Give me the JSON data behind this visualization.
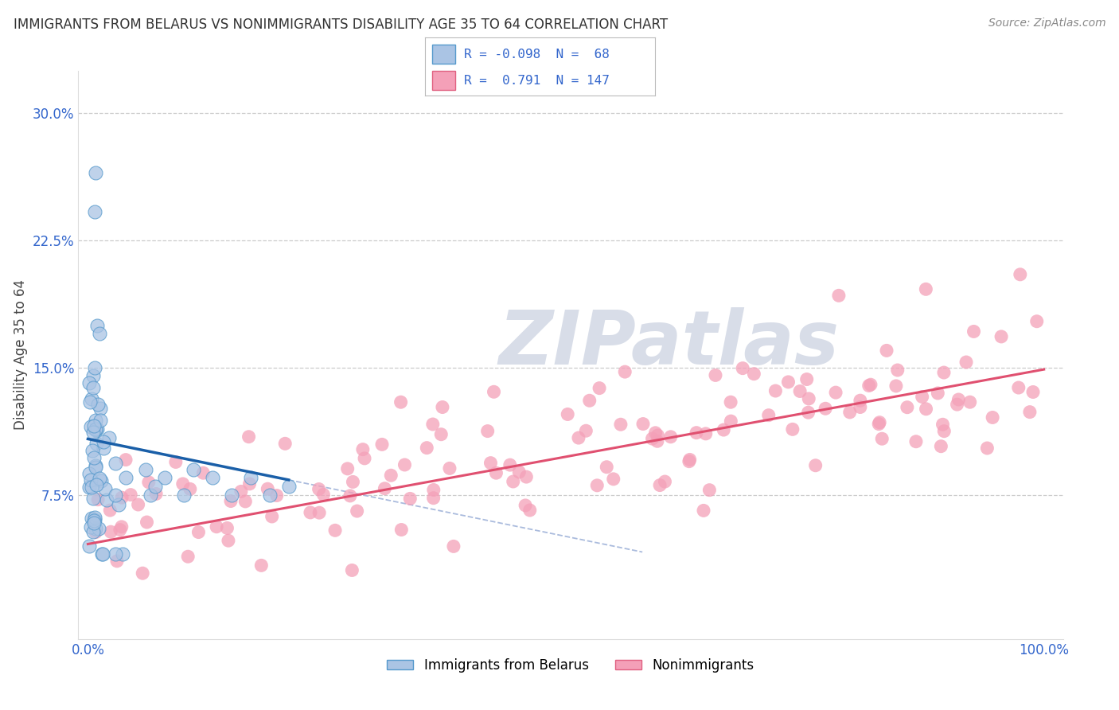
{
  "title": "IMMIGRANTS FROM BELARUS VS NONIMMIGRANTS DISABILITY AGE 35 TO 64 CORRELATION CHART",
  "source": "Source: ZipAtlas.com",
  "xlabel": "",
  "ylabel": "Disability Age 35 to 64",
  "xlim": [
    -0.01,
    1.02
  ],
  "ylim": [
    -0.01,
    0.325
  ],
  "xtick_positions": [
    0.0,
    1.0
  ],
  "xtick_labels": [
    "0.0%",
    "100.0%"
  ],
  "ytick_positions": [
    0.075,
    0.15,
    0.225,
    0.3
  ],
  "ytick_labels": [
    "7.5%",
    "15.0%",
    "22.5%",
    "30.0%"
  ],
  "blue_color": "#aac4e4",
  "blue_edge_color": "#5599cc",
  "pink_color": "#f4a0b8",
  "pink_edge_color": "#e06080",
  "blue_line_color": "#1a5fa8",
  "pink_line_color": "#e05070",
  "blue_dash_color": "#aaaacc",
  "watermark_text": "ZIPatlas",
  "watermark_color": "#d8dde8",
  "background_color": "#ffffff",
  "grid_color": "#cccccc",
  "title_fontsize": 12,
  "source_fontsize": 10,
  "axis_label_fontsize": 12,
  "tick_fontsize": 12,
  "tick_color": "#3366cc",
  "legend_label1": "R = -0.098  N =  68",
  "legend_label2": "R =  0.791  N = 147",
  "legend_color1": "#aac4e4",
  "legend_color2": "#f4a0b8",
  "bottom_legend_label1": "Immigrants from Belarus",
  "bottom_legend_label2": "Nonimmigrants"
}
